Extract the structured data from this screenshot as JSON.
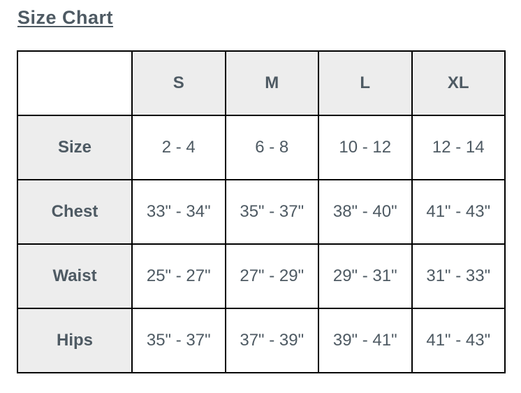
{
  "page": {
    "title": "Size Chart"
  },
  "chart_data": {
    "type": "table",
    "title": "Size Chart",
    "columns": [
      "",
      "S",
      "M",
      "L",
      "XL"
    ],
    "rows": [
      {
        "label": "Size",
        "values": [
          "2 - 4",
          "6 - 8",
          "10 - 12",
          "12 - 14"
        ]
      },
      {
        "label": "Chest",
        "values": [
          "33\" - 34\"",
          "35\" - 37\"",
          "38\" - 40\"",
          "41\" - 43\""
        ]
      },
      {
        "label": "Waist",
        "values": [
          "25\" - 27\"",
          "27\" - 29\"",
          "29\" - 31\"",
          "31\" - 33\""
        ]
      },
      {
        "label": "Hips",
        "values": [
          "35\" - 37\"",
          "37\" - 39\"",
          "39\" - 41\"",
          "41\" - 43\""
        ]
      }
    ],
    "layout": {
      "grid": "all-borders",
      "header_row_shaded": true,
      "label_column_shaded": true
    }
  },
  "colors": {
    "text": "#4e5a63",
    "header_bg": "#ededed",
    "border": "#000000",
    "page_bg": "#ffffff"
  }
}
